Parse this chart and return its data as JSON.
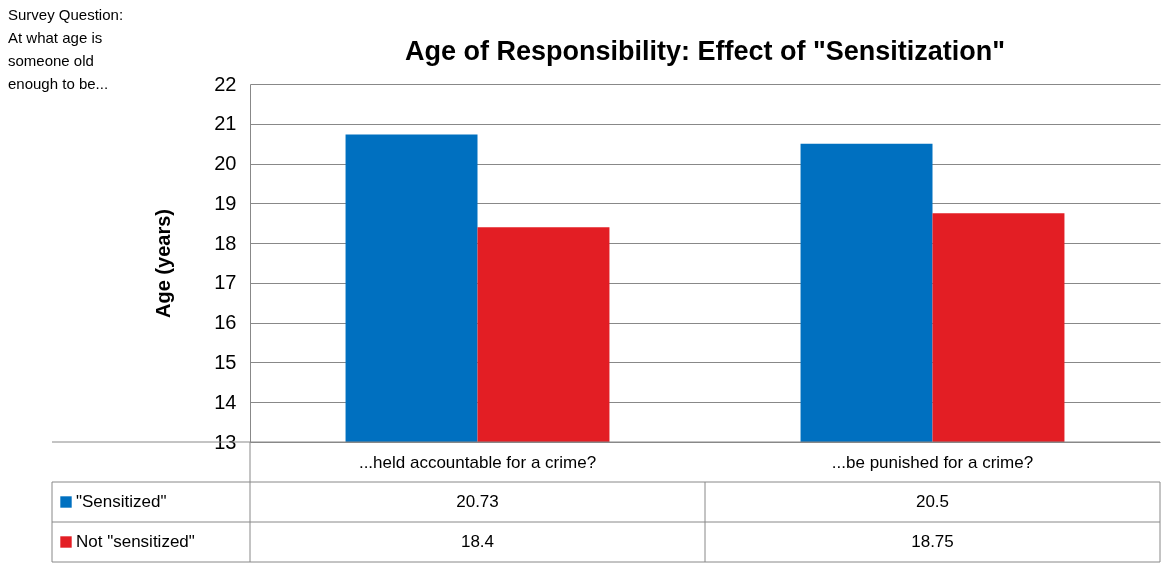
{
  "chart_data": {
    "type": "bar",
    "title": "Age of Responsibility: Effect of \"Sensitization\"",
    "ylabel": "Age (years)",
    "annotations": [
      "Survey Question: At what age is someone old enough to be..."
    ],
    "categories": [
      "...held accountable for a crime?",
      "...be punished for a crime?"
    ],
    "series": [
      {
        "name": "\"Sensitized\"",
        "color": "#0070c0",
        "values": [
          20.73,
          20.5
        ]
      },
      {
        "name": "Not \"sensitized\"",
        "color": "#e31e24",
        "values": [
          18.4,
          18.75
        ]
      }
    ],
    "ylim": [
      13,
      22
    ],
    "yticks": [
      13,
      14,
      15,
      16,
      17,
      18,
      19,
      20,
      21,
      22
    ],
    "grid": "y",
    "legend": "bottom",
    "data_labels": true
  }
}
